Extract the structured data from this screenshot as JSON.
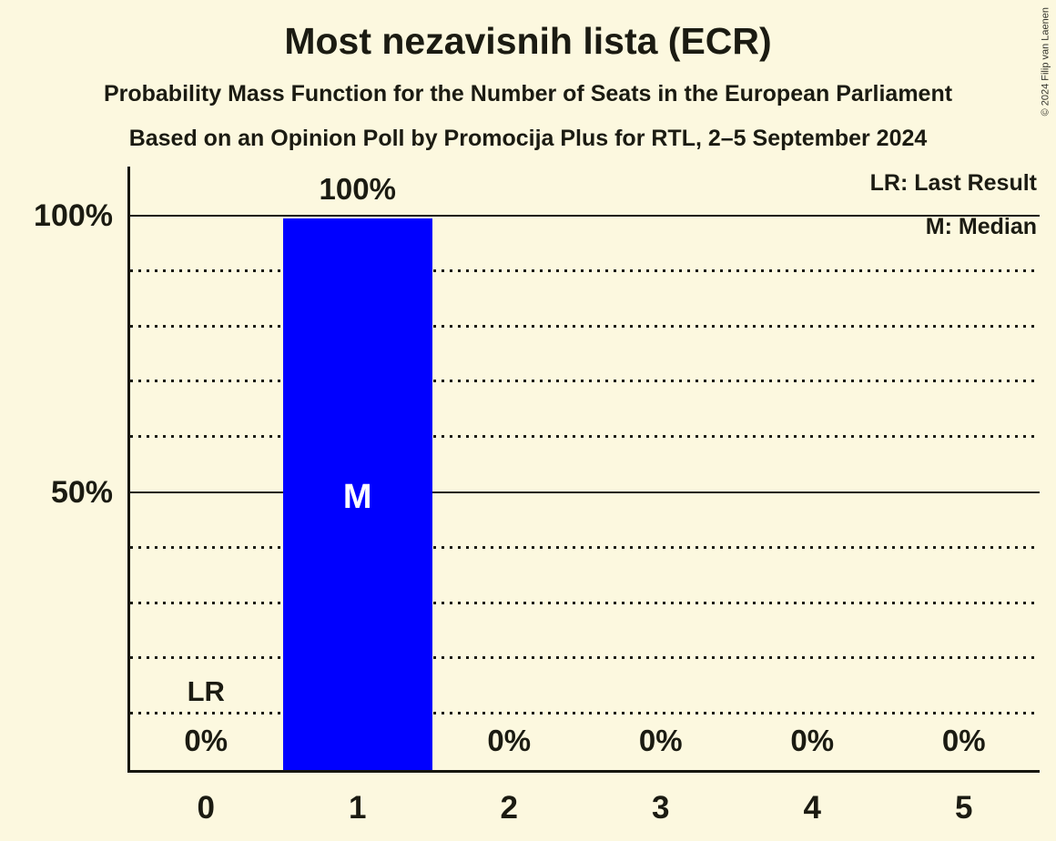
{
  "title": "Most nezavisnih lista (ECR)",
  "subtitle_method": "Probability Mass Function for the Number of Seats in the European Parliament",
  "subtitle_source": "Based on an Opinion Poll by Promocija Plus for RTL, 2–5 September 2024",
  "copyright": "© 2024 Filip van Laenen",
  "legend": {
    "last_result": "LR: Last Result",
    "median": "M: Median"
  },
  "chart_data": {
    "type": "bar",
    "title": "Most nezavisnih lista (ECR)",
    "categories": [
      "0",
      "1",
      "2",
      "3",
      "4",
      "5"
    ],
    "values": [
      0,
      100,
      0,
      0,
      0,
      0
    ],
    "bar_value_labels": [
      "0%",
      "100%",
      "0%",
      "0%",
      "0%",
      "0%"
    ],
    "xlabel": "",
    "ylabel": "",
    "ylim": [
      0,
      100
    ],
    "yticks_labeled": [
      {
        "value": 100,
        "label": "100%"
      },
      {
        "value": 50,
        "label": "50%"
      }
    ],
    "gridlines_solid": [
      100,
      50
    ],
    "gridlines_dotted": [
      90,
      80,
      70,
      60,
      40,
      30,
      20,
      10
    ],
    "grid": true,
    "legend_position": "top-right",
    "median_category_index": 1,
    "median_marker": "M",
    "median_marker_value": 50,
    "last_result_category_index": 0,
    "last_result_marker": "LR",
    "bar_color": "#0000ff",
    "background_color": "#fcf8df",
    "line_color": "#16160f"
  }
}
